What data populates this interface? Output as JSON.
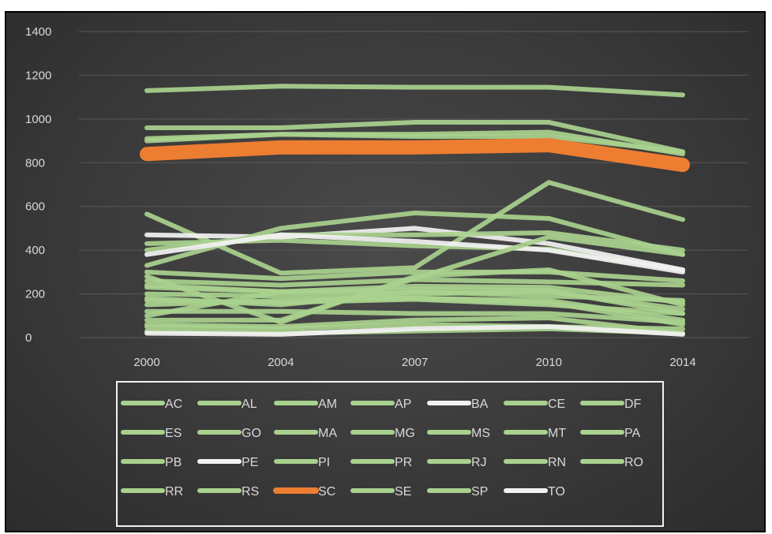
{
  "chart_data": {
    "type": "line",
    "title": "",
    "xlabel": "",
    "ylabel": "",
    "ylim": [
      0,
      1400
    ],
    "yticks": [
      0,
      200,
      400,
      600,
      800,
      1000,
      1200,
      1400
    ],
    "grid": true,
    "legend_position": "bottom",
    "categories": [
      "2000",
      "2004",
      "2007",
      "2010",
      "2014"
    ],
    "series": [
      {
        "name": "AC",
        "color": "#a9d18e",
        "values": [
          960,
          960,
          985,
          985,
          850
        ]
      },
      {
        "name": "AL",
        "color": "#a9d18e",
        "values": [
          910,
          930,
          930,
          940,
          840
        ]
      },
      {
        "name": "AM",
        "color": "#a9d18e",
        "values": [
          565,
          295,
          320,
          710,
          540
        ]
      },
      {
        "name": "AP",
        "color": "#a9d18e",
        "values": [
          430,
          445,
          420,
          405,
          310
        ]
      },
      {
        "name": "BA",
        "color": "#f2f2f2",
        "values": [
          470,
          460,
          500,
          430,
          310
        ]
      },
      {
        "name": "CE",
        "color": "#a9d18e",
        "values": [
          300,
          270,
          300,
          300,
          260
        ]
      },
      {
        "name": "DF",
        "color": "#a9d18e",
        "values": [
          1130,
          1150,
          1145,
          1145,
          1110
        ]
      },
      {
        "name": "ES",
        "color": "#a9d18e",
        "values": [
          280,
          70,
          280,
          310,
          150
        ]
      },
      {
        "name": "GO",
        "color": "#a9d18e",
        "values": [
          330,
          500,
          570,
          545,
          380
        ]
      },
      {
        "name": "MA",
        "color": "#a9d18e",
        "values": [
          150,
          170,
          180,
          170,
          80
        ]
      },
      {
        "name": "MG",
        "color": "#a9d18e",
        "values": [
          230,
          210,
          200,
          210,
          130
        ]
      },
      {
        "name": "MS",
        "color": "#a9d18e",
        "values": [
          100,
          210,
          235,
          230,
          160
        ]
      },
      {
        "name": "MT",
        "color": "#a9d18e",
        "values": [
          400,
          470,
          470,
          480,
          400
        ]
      },
      {
        "name": "PA",
        "color": "#a9d18e",
        "values": [
          200,
          190,
          180,
          160,
          60
        ]
      },
      {
        "name": "PB",
        "color": "#a9d18e",
        "values": [
          260,
          240,
          265,
          255,
          240
        ]
      },
      {
        "name": "PE",
        "color": "#f2f2f2",
        "values": [
          380,
          470,
          440,
          400,
          300
        ]
      },
      {
        "name": "PI",
        "color": "#a9d18e",
        "values": [
          80,
          80,
          270,
          460,
          380
        ]
      },
      {
        "name": "PR",
        "color": "#a9d18e",
        "values": [
          240,
          210,
          220,
          215,
          110
        ]
      },
      {
        "name": "RJ",
        "color": "#a9d18e",
        "values": [
          60,
          50,
          80,
          90,
          20
        ]
      },
      {
        "name": "RN",
        "color": "#a9d18e",
        "values": [
          120,
          120,
          110,
          110,
          70
        ]
      },
      {
        "name": "RO",
        "color": "#a9d18e",
        "values": [
          180,
          150,
          210,
          190,
          170
        ]
      },
      {
        "name": "RR",
        "color": "#a9d18e",
        "values": [
          50,
          40,
          60,
          50,
          40
        ]
      },
      {
        "name": "RS",
        "color": "#a9d18e",
        "values": [
          30,
          20,
          30,
          40,
          20
        ]
      },
      {
        "name": "SC",
        "color": "#ed7d31",
        "values": [
          840,
          870,
          870,
          880,
          790
        ]
      },
      {
        "name": "SE",
        "color": "#a9d18e",
        "values": [
          170,
          160,
          175,
          150,
          110
        ]
      },
      {
        "name": "SP",
        "color": "#a9d18e",
        "values": [
          900,
          930,
          920,
          920,
          850
        ]
      },
      {
        "name": "TO",
        "color": "#f2f2f2",
        "values": [
          20,
          15,
          40,
          50,
          15
        ]
      }
    ]
  }
}
